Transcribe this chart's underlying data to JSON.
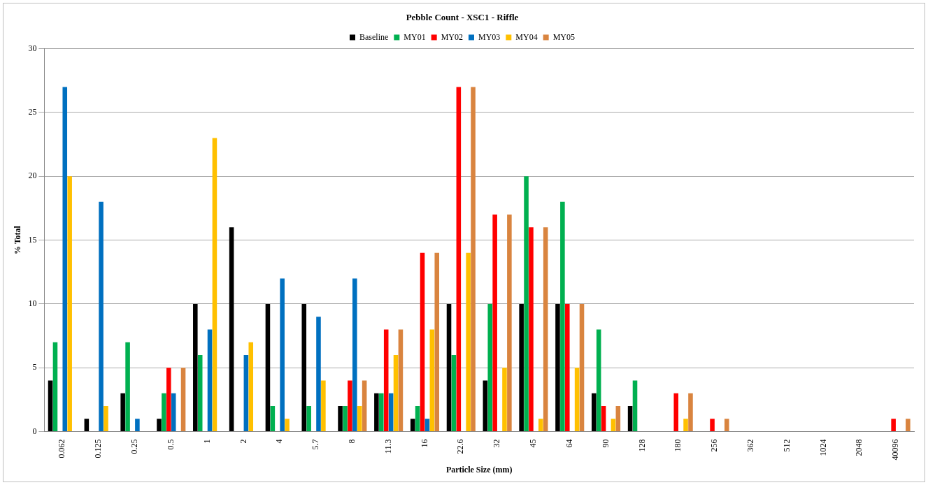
{
  "chart_data": {
    "type": "bar",
    "title": "Pebble Count - XSC1 - Riffle",
    "xlabel": "Particle Size (mm)",
    "ylabel": "% Total",
    "categories": [
      "0.062",
      "0.125",
      "0.25",
      "0.5",
      "1",
      "2",
      "4",
      "5.7",
      "8",
      "11.3",
      "16",
      "22.6",
      "32",
      "45",
      "64",
      "90",
      "128",
      "180",
      "256",
      "362",
      "512",
      "1024",
      "2048",
      "40096"
    ],
    "series": [
      {
        "name": "Baseline",
        "color": "#000000",
        "values": [
          4,
          1,
          3,
          1,
          10,
          16,
          10,
          10,
          2,
          3,
          1,
          10,
          4,
          10,
          10,
          3,
          2,
          0,
          0,
          0,
          0,
          0,
          0,
          0
        ]
      },
      {
        "name": "MY01",
        "color": "#00b050",
        "values": [
          7,
          0,
          7,
          3,
          6,
          0,
          2,
          2,
          2,
          3,
          2,
          6,
          10,
          20,
          18,
          8,
          4,
          0,
          0,
          0,
          0,
          0,
          0,
          0
        ]
      },
      {
        "name": "MY02",
        "color": "#ff0000",
        "values": [
          0,
          0,
          0,
          5,
          0,
          0,
          0,
          0,
          4,
          8,
          14,
          27,
          17,
          16,
          10,
          2,
          0,
          3,
          1,
          0,
          0,
          0,
          0,
          1
        ]
      },
      {
        "name": "MY03",
        "color": "#0070c0",
        "values": [
          27,
          18,
          1,
          3,
          8,
          6,
          12,
          9,
          12,
          3,
          1,
          0,
          0,
          0,
          0,
          0,
          0,
          0,
          0,
          0,
          0,
          0,
          0,
          0
        ]
      },
      {
        "name": "MY04",
        "color": "#ffc000",
        "values": [
          20,
          2,
          0,
          0,
          23,
          7,
          1,
          4,
          2,
          6,
          8,
          14,
          5,
          1,
          5,
          1,
          0,
          1,
          0,
          0,
          0,
          0,
          0,
          0
        ]
      },
      {
        "name": "MY05",
        "color": "#d9843f",
        "values": [
          0,
          0,
          0,
          5,
          0,
          0,
          0,
          0,
          4,
          8,
          14,
          27,
          17,
          16,
          10,
          2,
          0,
          3,
          1,
          0,
          0,
          0,
          0,
          1
        ]
      }
    ],
    "ylim": [
      0,
      30
    ],
    "yticks": [
      0,
      5,
      10,
      15,
      20,
      25,
      30
    ],
    "grid": "y",
    "legend": "top"
  }
}
